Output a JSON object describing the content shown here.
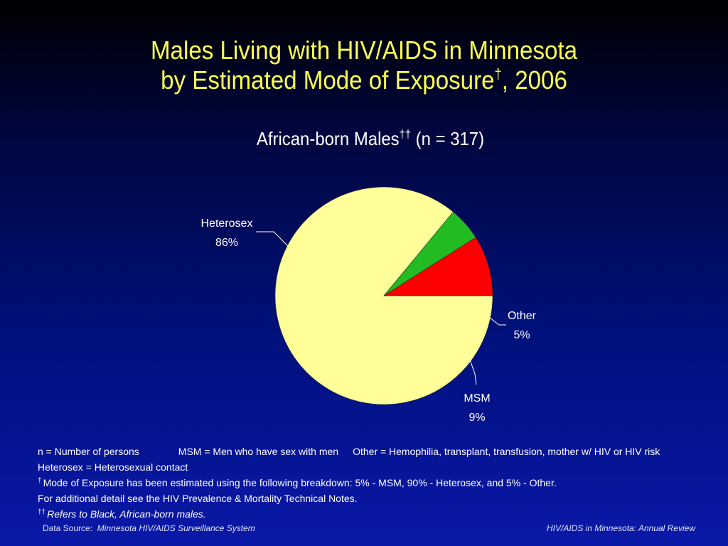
{
  "title": {
    "line1": "Males Living with HIV/AIDS in Minnesota",
    "line2_main": "by Estimated Mode of Exposure",
    "line2_mark": "†",
    "line2_tail": ", 2006"
  },
  "subtitle": {
    "main": "African-born Males",
    "mark": "††",
    "tail": " (n = 317)"
  },
  "chart_data": {
    "type": "pie",
    "slices": [
      {
        "label": "Heterosex",
        "value": 86,
        "display": "86%",
        "color": "#ffff99"
      },
      {
        "label": "Other",
        "value": 5,
        "display": "5%",
        "color": "#22bb22"
      },
      {
        "label": "MSM",
        "value": 9,
        "display": "9%",
        "color": "#ff0000"
      }
    ],
    "start_angle_deg": 0,
    "direction": "clockwise",
    "label_color": "#ffffff",
    "leader_lines": true
  },
  "notes": {
    "n_def": "n = Number of persons",
    "msm_def": "MSM = Men who have sex with men",
    "other_def": "Other = Hemophilia, transplant, transfusion, mother w/ HIV or HIV risk",
    "hetero_def": "Heterosex = Heterosexual contact",
    "mark1": "†",
    "mode_note": "Mode of Exposure has been estimated using the following breakdown: 5% - MSM, 90% - Heterosex, and 5% - Other.",
    "detail_note": "For additional detail see the HIV Prevalence & Mortality Technical Notes.",
    "mark2": "††",
    "refers_note": "Refers to Black, African-born males."
  },
  "footer": {
    "source_label": "Data Source:",
    "source_name": "Minnesota HIV/AIDS Surveillance System",
    "publication": "HIV/AIDS in Minnesota: Annual Review"
  },
  "colors": {
    "title": "#ffff4d",
    "background_top": "#000000",
    "background_bottom": "#0a18a8"
  }
}
